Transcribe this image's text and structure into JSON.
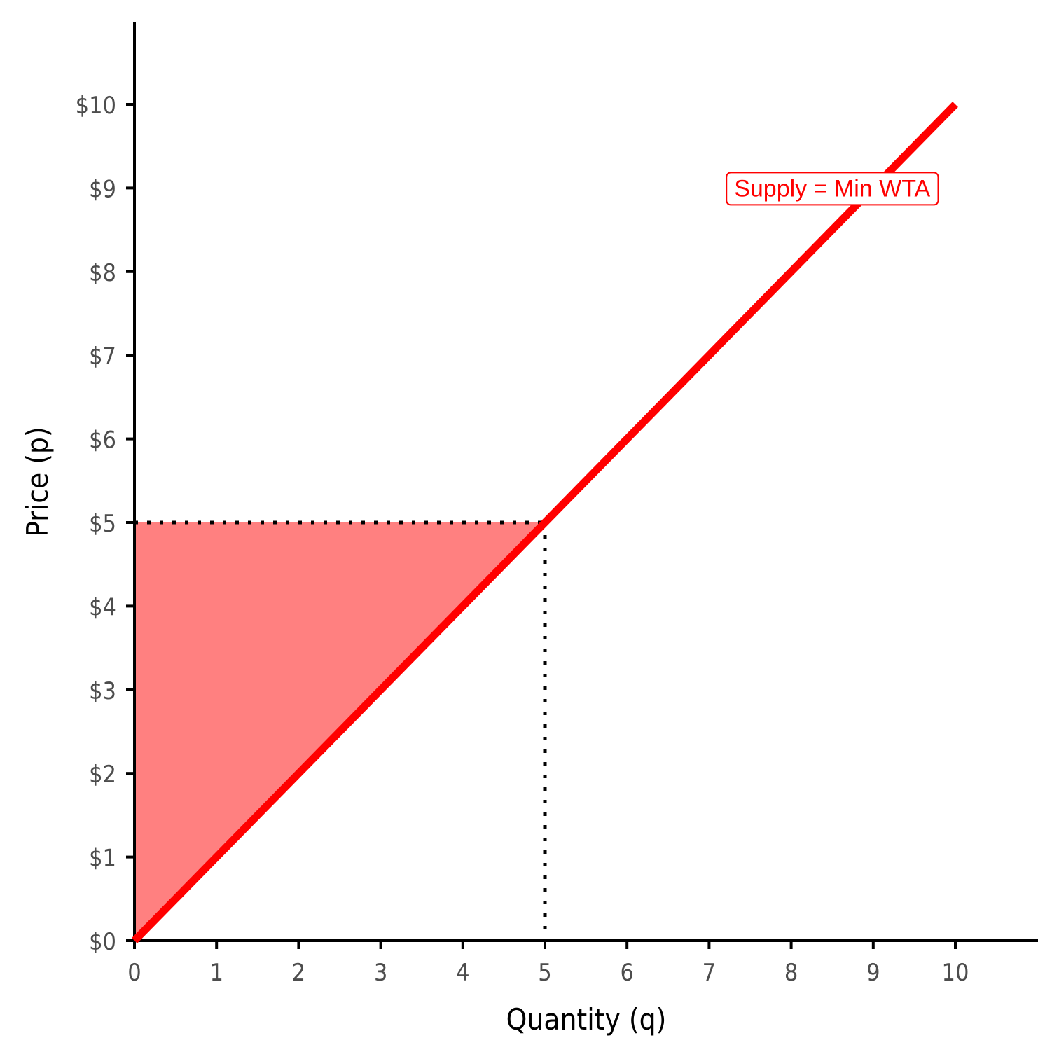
{
  "chart_data": {
    "type": "line",
    "title": "",
    "xlabel": "Quantity (q)",
    "ylabel": "Price (p)",
    "xlim": [
      0,
      11
    ],
    "ylim": [
      0,
      11
    ],
    "x_ticks": [
      0,
      1,
      2,
      3,
      4,
      5,
      6,
      7,
      8,
      9,
      10
    ],
    "x_tick_labels": [
      "0",
      "1",
      "2",
      "3",
      "4",
      "5",
      "6",
      "7",
      "8",
      "9",
      "10"
    ],
    "y_ticks": [
      0,
      1,
      2,
      3,
      4,
      5,
      6,
      7,
      8,
      9,
      10
    ],
    "y_tick_labels": [
      "$0",
      "$1",
      "$2",
      "$3",
      "$4",
      "$5",
      "$6",
      "$7",
      "$8",
      "$9",
      "$10"
    ],
    "grid": false,
    "series": [
      {
        "name": "Supply = Min WTA",
        "color": "#ff0000",
        "x": [
          0,
          10
        ],
        "y": [
          0,
          10
        ]
      }
    ],
    "shaded_area": {
      "color": "#ff8080",
      "x": [
        0,
        5,
        0
      ],
      "y": [
        0,
        5,
        5
      ]
    },
    "reference_point": {
      "x": 5,
      "y": 5,
      "line_style": "dotted",
      "color": "#000000"
    },
    "annotation": {
      "text": "Supply = Min WTA",
      "x": 8.5,
      "y": 9,
      "color": "#ff0000"
    }
  }
}
